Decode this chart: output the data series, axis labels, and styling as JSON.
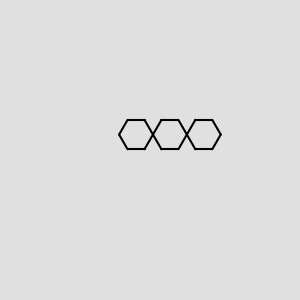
{
  "bg_color": "#e0e0e0",
  "bond_color": "#000000",
  "n_color": "#0000cc",
  "o_color": "#cc0000",
  "lw": 1.5,
  "figsize": [
    3.0,
    3.0
  ],
  "dpi": 100
}
